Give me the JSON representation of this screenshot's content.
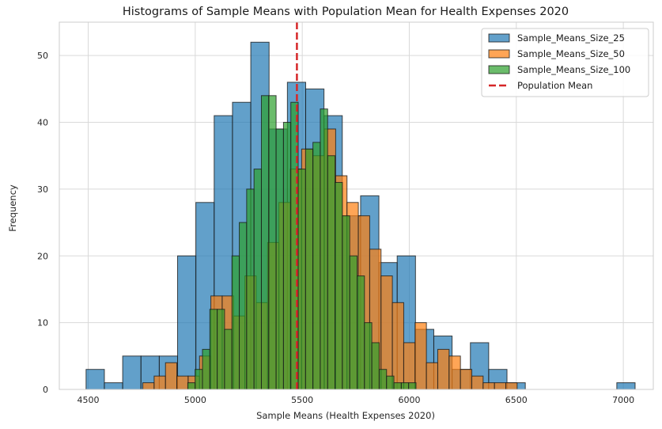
{
  "chart_data": {
    "type": "histogram",
    "title": "Histograms of Sample Means with Population Mean for Health Expenses 2020",
    "xlabel": "Sample Means (Health Expenses 2020)",
    "ylabel": "Frequency",
    "xlim": [
      4365,
      7140
    ],
    "ylim": [
      0,
      55
    ],
    "xticks": [
      4500,
      5000,
      5500,
      6000,
      6500,
      7000
    ],
    "yticks": [
      0,
      10,
      20,
      30,
      40,
      50
    ],
    "grid": true,
    "legend_position": "top-right",
    "population_mean": 5475,
    "series": [
      {
        "name": "Sample_Means_Size_25",
        "color": "#1f77b4",
        "bin_start": 4490,
        "bin_width": 85.5,
        "counts": [
          3,
          1,
          5,
          5,
          5,
          20,
          28,
          41,
          43,
          52,
          39,
          46,
          45,
          41,
          26,
          29,
          19,
          20,
          9,
          8,
          3,
          7,
          3,
          1,
          0,
          0,
          0,
          0,
          0,
          1
        ]
      },
      {
        "name": "Sample_Means_Size_50",
        "color": "#ff7f0e",
        "bin_start": 4755,
        "bin_width": 53,
        "counts": [
          1,
          2,
          4,
          2,
          2,
          5,
          14,
          14,
          11,
          17,
          13,
          22,
          28,
          33,
          36,
          35,
          39,
          32,
          28,
          26,
          21,
          17,
          13,
          7,
          10,
          4,
          6,
          5,
          3,
          2,
          1,
          1,
          1
        ]
      },
      {
        "name": "Sample_Means_Size_100",
        "color": "#2ca02c",
        "bin_start": 4965,
        "bin_width": 34.4,
        "counts": [
          1,
          3,
          6,
          12,
          12,
          9,
          20,
          25,
          30,
          33,
          44,
          44,
          39,
          40,
          43,
          33,
          36,
          37,
          42,
          35,
          31,
          26,
          20,
          17,
          10,
          7,
          3,
          2,
          1,
          1,
          1
        ]
      }
    ],
    "legend": [
      {
        "label": "Sample_Means_Size_25",
        "kind": "patch",
        "color": "#1f77b4"
      },
      {
        "label": "Sample_Means_Size_50",
        "kind": "patch",
        "color": "#ff7f0e"
      },
      {
        "label": "Sample_Means_Size_100",
        "kind": "patch",
        "color": "#2ca02c"
      },
      {
        "label": "Population Mean",
        "kind": "line",
        "color": "#d62728"
      }
    ]
  }
}
